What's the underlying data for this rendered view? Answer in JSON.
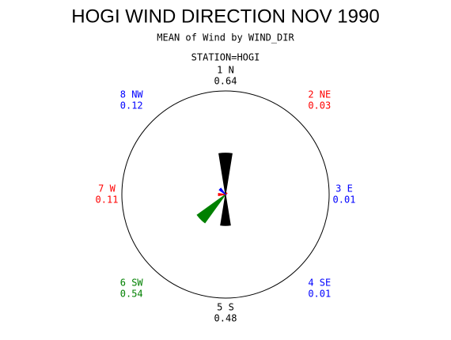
{
  "chart_data": {
    "type": "star",
    "title": "HOGI WIND DIRECTION NOV 1990",
    "subtitle": "MEAN of Wind by WIND_DIR",
    "group_label": "STATION=HOGI",
    "categories": [
      "1 N",
      "2 NE",
      "3 E",
      "4 SE",
      "5 S",
      "6 SW",
      "7 W",
      "8 NW"
    ],
    "values": [
      0.64,
      0.03,
      0.01,
      0.01,
      0.48,
      0.54,
      0.11,
      0.12
    ],
    "colors": [
      "#000000",
      "#ff0000",
      "#0000ff",
      "#0000ff",
      "#000000",
      "#008000",
      "#ff0000",
      "#0000ff"
    ],
    "rlim": [
      0,
      1.6
    ]
  }
}
